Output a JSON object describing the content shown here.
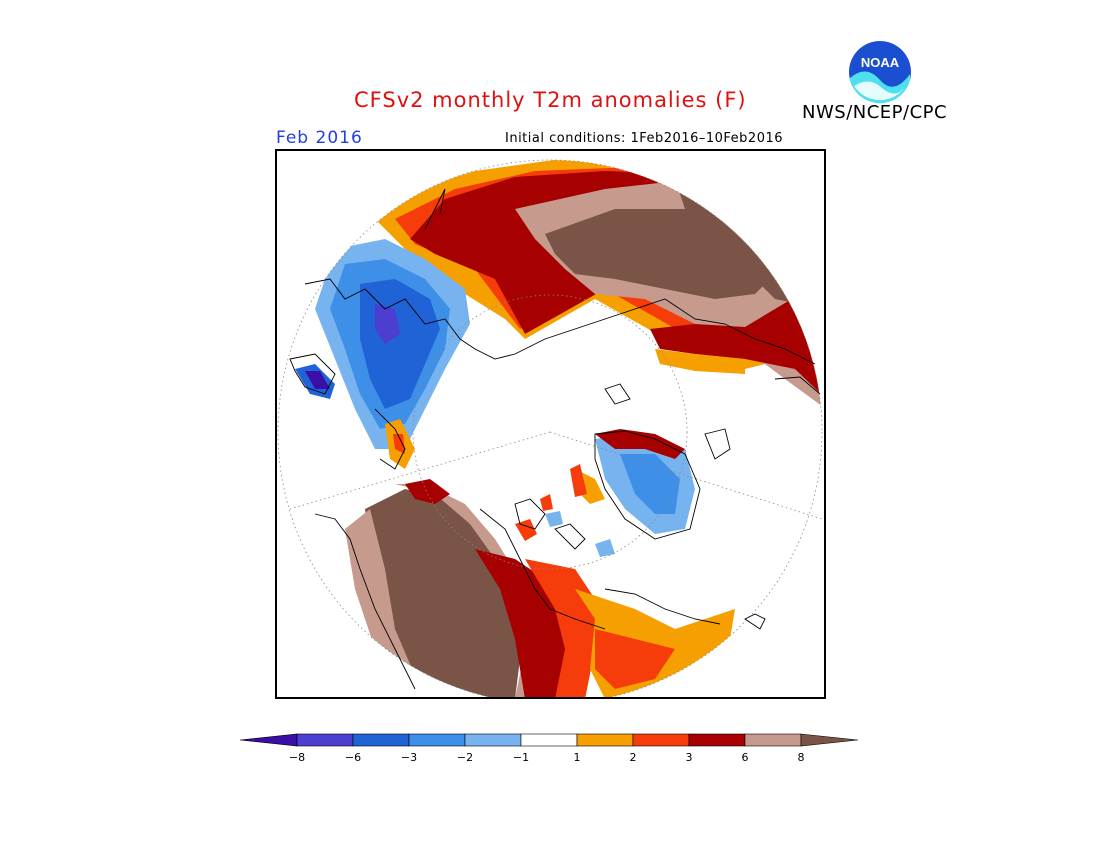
{
  "title": "CFSv2 monthly T2m anomalies (F)",
  "organization": "NWS/NCEP/CPC",
  "logo_text": "NOAA",
  "period": "Feb 2016",
  "initial_conditions": "Initial conditions: 1Feb2016–10Feb2016",
  "colorbar": {
    "labels": [
      "−8",
      "−6",
      "−3",
      "−2",
      "−1",
      "1",
      "2",
      "3",
      "6",
      "8"
    ],
    "colors": [
      "#3b0ea8",
      "#4b3ed1",
      "#1f63d6",
      "#3e8fe8",
      "#77b4ef",
      "#ffffff",
      "#f5a000",
      "#f53c0a",
      "#a60000",
      "#c79a8e",
      "#7a5446"
    ]
  }
}
